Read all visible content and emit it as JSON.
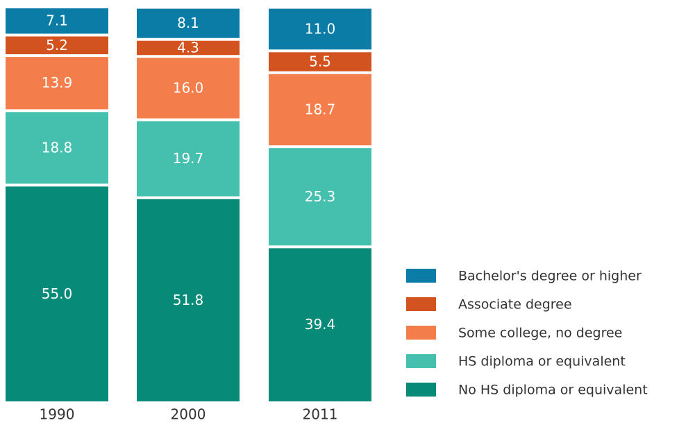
{
  "chart_data": {
    "type": "bar",
    "stacked": true,
    "categories": [
      "1990",
      "2000",
      "2011"
    ],
    "series": [
      {
        "name": "No HS diploma or equivalent",
        "color": "#078a78",
        "values": [
          55.0,
          51.8,
          39.4
        ],
        "value_labels": [
          "55.0",
          "51.8",
          "39.4"
        ]
      },
      {
        "name": "HS diploma or equivalent",
        "color": "#45bfae",
        "values": [
          18.8,
          19.7,
          25.3
        ],
        "value_labels": [
          "18.8",
          "19.7",
          "25.3"
        ]
      },
      {
        "name": "Some college, no degree",
        "color": "#f47e4b",
        "values": [
          13.9,
          16.0,
          18.7
        ],
        "value_labels": [
          "13.9",
          "16.0",
          "18.7"
        ]
      },
      {
        "name": "Associate degree",
        "color": "#d2531f",
        "values": [
          5.2,
          4.3,
          5.5
        ],
        "value_labels": [
          "5.2",
          "4.3",
          "5.5"
        ]
      },
      {
        "name": "Bachelor's degree or higher",
        "color": "#0b7ca5",
        "values": [
          7.1,
          8.1,
          11.0
        ],
        "value_labels": [
          "7.1",
          "8.1",
          "11.0"
        ]
      }
    ],
    "legend": "right"
  }
}
